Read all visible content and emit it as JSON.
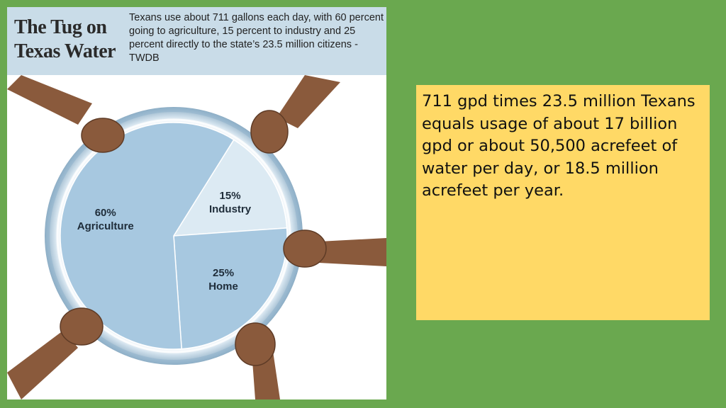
{
  "colors": {
    "slide_background": "#6aa84f",
    "infographic_header": "#c9dce8",
    "pie_slice": "#a7c8e0",
    "pie_highlight": "#dceaf3",
    "note_background": "#ffd966",
    "water_ring": "#8fb3cc",
    "hands": "#8a5a3c"
  },
  "infographic": {
    "title_line1": "The Tug on",
    "title_line2": "Texas Water",
    "caption": "Texans use about 711 gallons each day, with 60 percent going to agriculture, 15 percent to industry and 25 percent directly to the state’s 23.5 million citizens - TWDB"
  },
  "chart_data": {
    "type": "pie",
    "title": "The Tug on Texas Water",
    "slices": [
      {
        "label": "Industry",
        "percent_label": "15%",
        "value": 15
      },
      {
        "label": "Home",
        "percent_label": "25%",
        "value": 25
      },
      {
        "label": "Agriculture",
        "percent_label": "60%",
        "value": 60
      }
    ]
  },
  "note": {
    "text": "711 gpd times 23.5 million Texans equals usage of about 17 billion gpd or about 50,500 acrefeet of water per day, or 18.5 million acrefeet per year."
  }
}
